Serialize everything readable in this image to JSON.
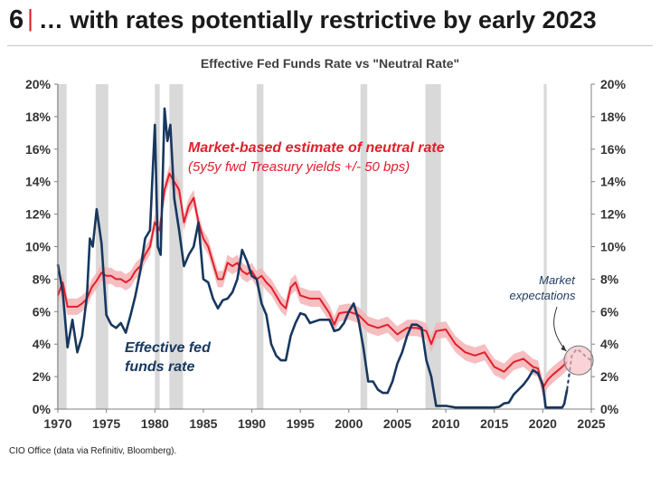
{
  "header": {
    "number": "6",
    "separator": "|",
    "title": "… with rates potentially restrictive by early 2023"
  },
  "footer": {
    "source": "CIO Office (data via Refinitiv, Bloomberg)."
  },
  "colors": {
    "fed_funds": "#17375e",
    "neutral": "#e0202b",
    "band": "#f3b3b6",
    "recession": "#d9d9d9",
    "axis_text": "#333333"
  },
  "chart_data": {
    "type": "line",
    "title": "Effective Fed Funds Rate vs \"Neutral Rate\"",
    "xlim": [
      1970,
      2025
    ],
    "ylim": [
      0,
      20
    ],
    "x_ticks": [
      "1970",
      "1975",
      "1980",
      "1985",
      "1990",
      "1995",
      "2000",
      "2005",
      "2010",
      "2015",
      "2020",
      "2025"
    ],
    "y_ticks_left": [
      "0%",
      "2%",
      "4%",
      "6%",
      "8%",
      "10%",
      "12%",
      "14%",
      "16%",
      "18%",
      "20%"
    ],
    "y_ticks_right": [
      "0%",
      "2%",
      "4%",
      "6%",
      "8%",
      "10%",
      "12%",
      "14%",
      "16%",
      "18%",
      "20%"
    ],
    "grid": false,
    "recession_periods": [
      [
        1969.9,
        1970.9
      ],
      [
        1973.9,
        1975.2
      ],
      [
        1980.0,
        1980.5
      ],
      [
        1981.5,
        1982.9
      ],
      [
        1990.5,
        1991.2
      ],
      [
        2001.2,
        2001.9
      ],
      [
        2007.9,
        2009.5
      ],
      [
        2020.1,
        2020.4
      ]
    ],
    "annotations": {
      "neutral_line1": "Market-based estimate of neutral rate",
      "neutral_line2": "(5y5y fwd Treasury yields +/- 50 bps)",
      "fed_line1": "Effective fed",
      "fed_line2": "funds rate",
      "market_line1": "Market",
      "market_line2": "expectations"
    },
    "band_halfwidth": 0.5,
    "series": [
      {
        "name": "Effective fed funds rate",
        "x": [
          1970,
          1970.5,
          1971,
          1971.5,
          1972,
          1972.5,
          1973,
          1973.3,
          1973.6,
          1974,
          1974.5,
          1975,
          1975.5,
          1976,
          1976.5,
          1977,
          1977.5,
          1978,
          1978.5,
          1979,
          1979.5,
          1980,
          1980.3,
          1980.6,
          1981,
          1981.3,
          1981.6,
          1982,
          1982.5,
          1983,
          1983.5,
          1984,
          1984.5,
          1985,
          1985.5,
          1986,
          1986.5,
          1987,
          1987.5,
          1988,
          1988.5,
          1989,
          1989.5,
          1990,
          1990.5,
          1991,
          1991.5,
          1992,
          1992.5,
          1993,
          1993.5,
          1994,
          1994.5,
          1995,
          1995.5,
          1996,
          1997,
          1998,
          1998.5,
          1999,
          1999.5,
          2000,
          2000.5,
          2001,
          2001.5,
          2002,
          2002.5,
          2003,
          2003.5,
          2004,
          2004.5,
          2005,
          2005.5,
          2006,
          2006.5,
          2007,
          2007.5,
          2008,
          2008.5,
          2009,
          2010,
          2011,
          2012,
          2013,
          2014,
          2015,
          2015.5,
          2016,
          2016.5,
          2017,
          2017.5,
          2018,
          2018.5,
          2019,
          2019.5,
          2020,
          2020.3,
          2021,
          2022,
          2022.2,
          2022.5
        ],
        "y": [
          8.9,
          7.2,
          3.8,
          5.5,
          3.5,
          4.5,
          7.0,
          10.5,
          10.0,
          12.3,
          10.2,
          5.8,
          5.2,
          5.0,
          5.3,
          4.7,
          5.8,
          7.0,
          8.5,
          10.5,
          11.0,
          17.5,
          10.0,
          9.5,
          18.5,
          16.5,
          17.5,
          13.0,
          11.0,
          8.8,
          9.5,
          10.0,
          11.5,
          8.0,
          7.8,
          6.8,
          6.2,
          6.7,
          6.8,
          7.2,
          8.0,
          9.8,
          9.1,
          8.2,
          8.0,
          6.5,
          5.8,
          4.0,
          3.3,
          3.0,
          3.0,
          4.5,
          5.3,
          5.9,
          5.8,
          5.3,
          5.5,
          5.5,
          4.8,
          4.9,
          5.3,
          6.0,
          6.5,
          5.5,
          3.8,
          1.7,
          1.7,
          1.2,
          1.0,
          1.0,
          1.7,
          2.8,
          3.5,
          4.5,
          5.2,
          5.2,
          5.0,
          3.0,
          2.0,
          0.2,
          0.2,
          0.1,
          0.1,
          0.1,
          0.1,
          0.1,
          0.14,
          0.35,
          0.4,
          0.9,
          1.2,
          1.5,
          1.9,
          2.4,
          2.2,
          1.5,
          0.1,
          0.1,
          0.1,
          0.3,
          1.2
        ]
      },
      {
        "name": "Market-based estimate of neutral rate",
        "x": [
          1970,
          1970.5,
          1971,
          1971.5,
          1972,
          1972.5,
          1973,
          1973.5,
          1974,
          1974.5,
          1975,
          1975.5,
          1976,
          1976.5,
          1977,
          1977.5,
          1978,
          1978.5,
          1979,
          1979.5,
          1980,
          1980.5,
          1981,
          1981.5,
          1982,
          1982.5,
          1983,
          1983.5,
          1984,
          1984.5,
          1985,
          1985.5,
          1986,
          1986.5,
          1987,
          1987.5,
          1988,
          1988.5,
          1989,
          1989.5,
          1990,
          1990.5,
          1991,
          1991.5,
          1992,
          1993,
          1993.5,
          1994,
          1994.5,
          1995,
          1996,
          1997,
          1998,
          1998.5,
          1999,
          2000,
          2001,
          2002,
          2003,
          2004,
          2005,
          2006,
          2007,
          2008,
          2008.5,
          2009,
          2010,
          2011,
          2012,
          2013,
          2014,
          2015,
          2016,
          2017,
          2018,
          2019,
          2019.5,
          2020,
          2020.5,
          2021,
          2022,
          2022.5
        ],
        "y": [
          7.0,
          7.8,
          6.3,
          6.3,
          6.3,
          6.5,
          6.8,
          7.5,
          7.9,
          8.4,
          8.2,
          8.2,
          8.0,
          8.0,
          7.8,
          8.0,
          8.5,
          8.8,
          9.5,
          10.0,
          11.5,
          11.0,
          13.5,
          14.5,
          14.0,
          13.5,
          11.5,
          12.5,
          13.0,
          11.5,
          10.5,
          10.0,
          9.0,
          8.0,
          8.0,
          9.0,
          8.8,
          9.0,
          8.5,
          8.3,
          8.5,
          8.0,
          8.2,
          7.8,
          7.5,
          6.5,
          6.2,
          7.5,
          7.8,
          7.0,
          6.8,
          6.8,
          5.9,
          5.2,
          5.9,
          6.0,
          5.8,
          5.2,
          5.0,
          5.2,
          4.6,
          5.0,
          5.0,
          4.8,
          4.0,
          4.8,
          4.9,
          4.0,
          3.5,
          3.3,
          3.5,
          2.6,
          2.3,
          2.9,
          3.1,
          2.6,
          2.5,
          1.3,
          1.8,
          2.1,
          2.6,
          2.9
        ]
      },
      {
        "name": "Market expectations",
        "x": [
          2022.5,
          2023,
          2023.5,
          2024,
          2024.5,
          2025
        ],
        "y": [
          1.2,
          3.3,
          3.7,
          3.5,
          3.2,
          3.0
        ]
      }
    ]
  }
}
